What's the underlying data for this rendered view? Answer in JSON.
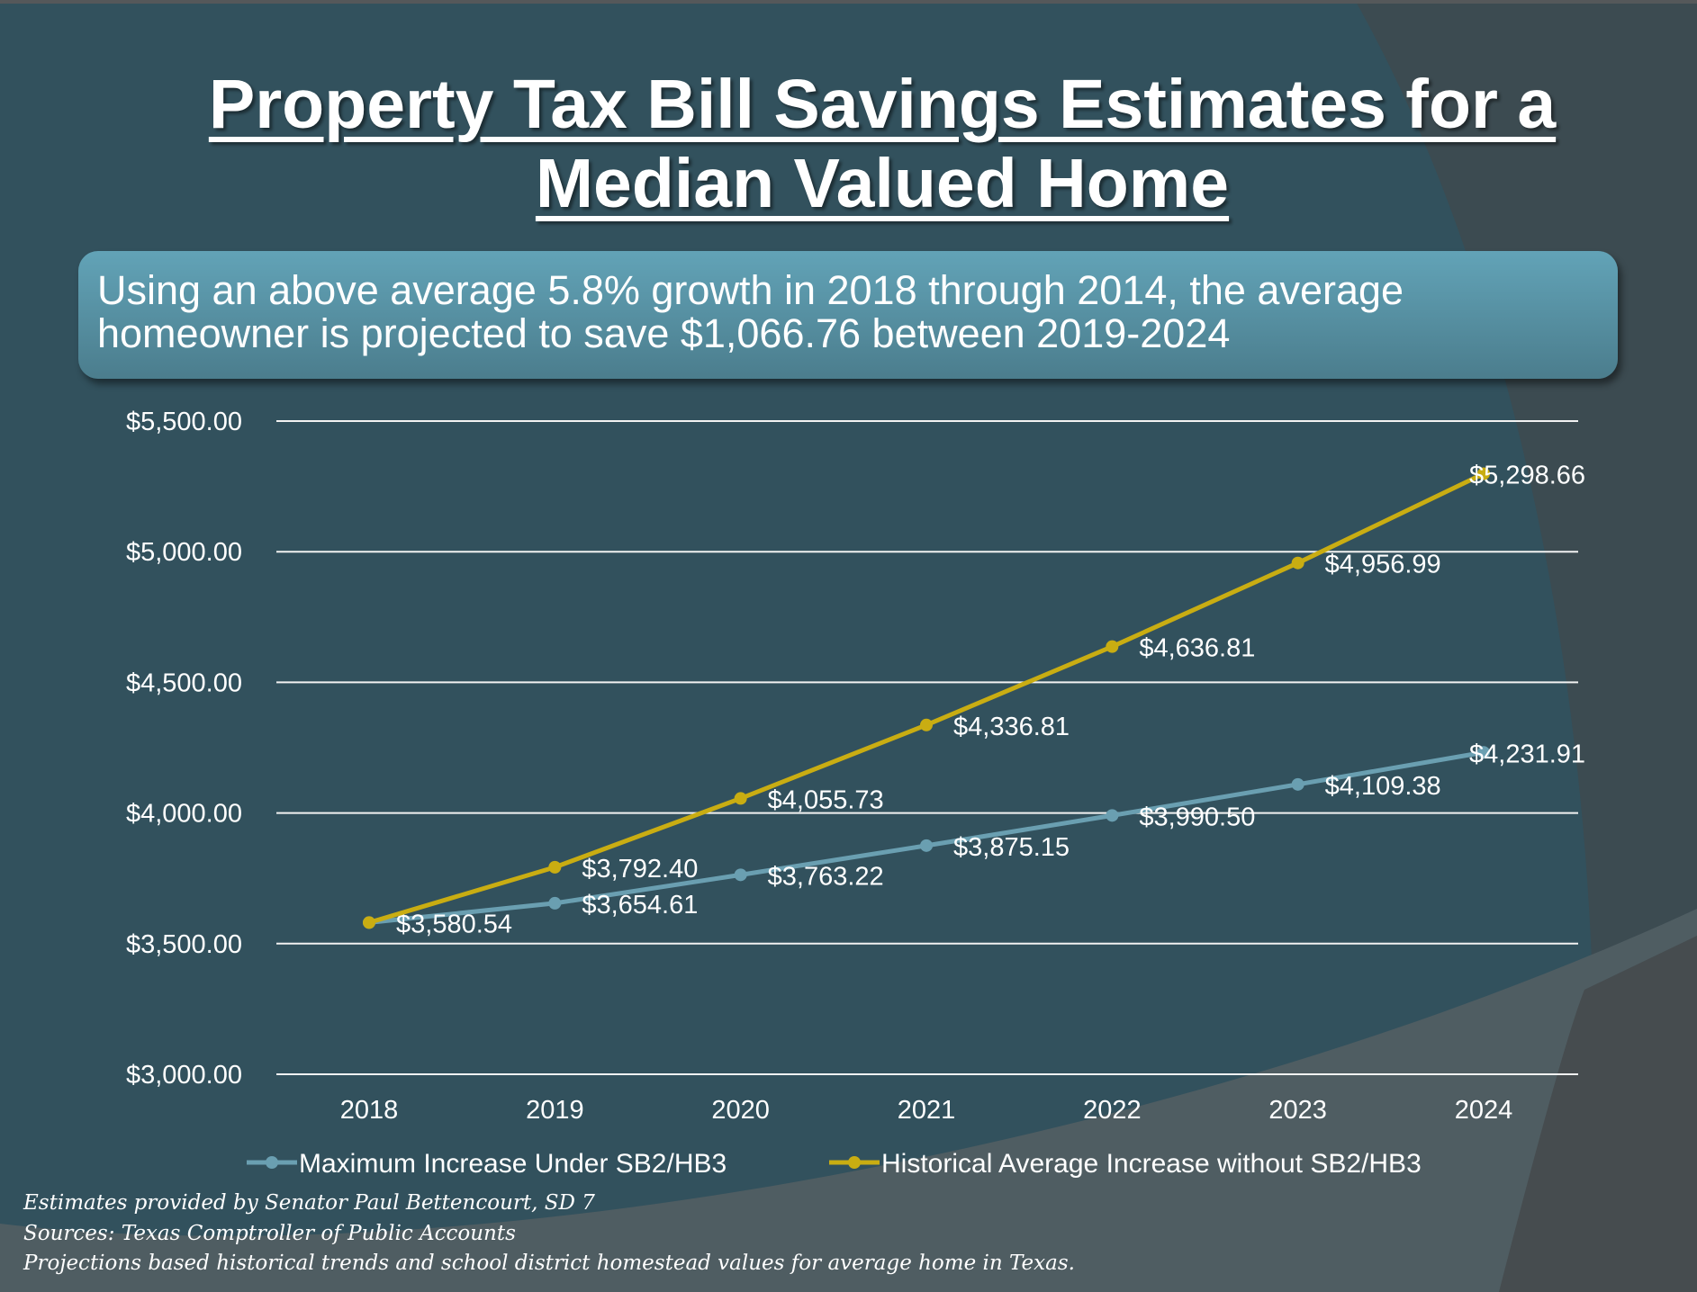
{
  "title": {
    "line1": "Property Tax Bill Savings Estimates for a",
    "line2": "Median Valued Home"
  },
  "callout": "Using an above average 5.8% growth in 2018 through 2014, the average homeowner is projected to save $1,066.76 between 2019-2024",
  "chart_data": {
    "type": "line",
    "categories": [
      "2018",
      "2019",
      "2020",
      "2021",
      "2022",
      "2023",
      "2024"
    ],
    "ylim": [
      3000,
      5500
    ],
    "y_ticks": [
      3000,
      3500,
      4000,
      4500,
      5000,
      5500
    ],
    "y_tick_labels": [
      "$3,000.00",
      "$3,500.00",
      "$4,000.00",
      "$4,500.00",
      "$5,000.00",
      "$5,500.00"
    ],
    "grid": true,
    "legend": "bottom",
    "series": [
      {
        "name": "Maximum Increase Under SB2/HB3",
        "color": "#6a9fb1",
        "values": [
          3580.54,
          3654.61,
          3763.22,
          3875.15,
          3990.5,
          4109.38,
          4231.91
        ],
        "labels": [
          "$3,580.54",
          "$3,654.61",
          "$3,763.22",
          "$3,875.15",
          "$3,990.50",
          "$4,109.38",
          "$4,231.91"
        ]
      },
      {
        "name": "Historical Average Increase without SB2/HB3",
        "color": "#c9ad12",
        "values": [
          3580.54,
          3792.4,
          4055.73,
          4336.81,
          4636.81,
          4956.99,
          5298.66
        ],
        "labels": [
          "",
          "$3,792.40",
          "$4,055.73",
          "$4,336.81",
          "$4,636.81",
          "$4,956.99",
          "$5,298.66"
        ]
      }
    ]
  },
  "footer": [
    "Estimates provided by Senator Paul Bettencourt, SD 7",
    "Sources: Texas Comptroller of Public Accounts",
    "Projections based historical trends and school district homestead values for average home in Texas."
  ]
}
